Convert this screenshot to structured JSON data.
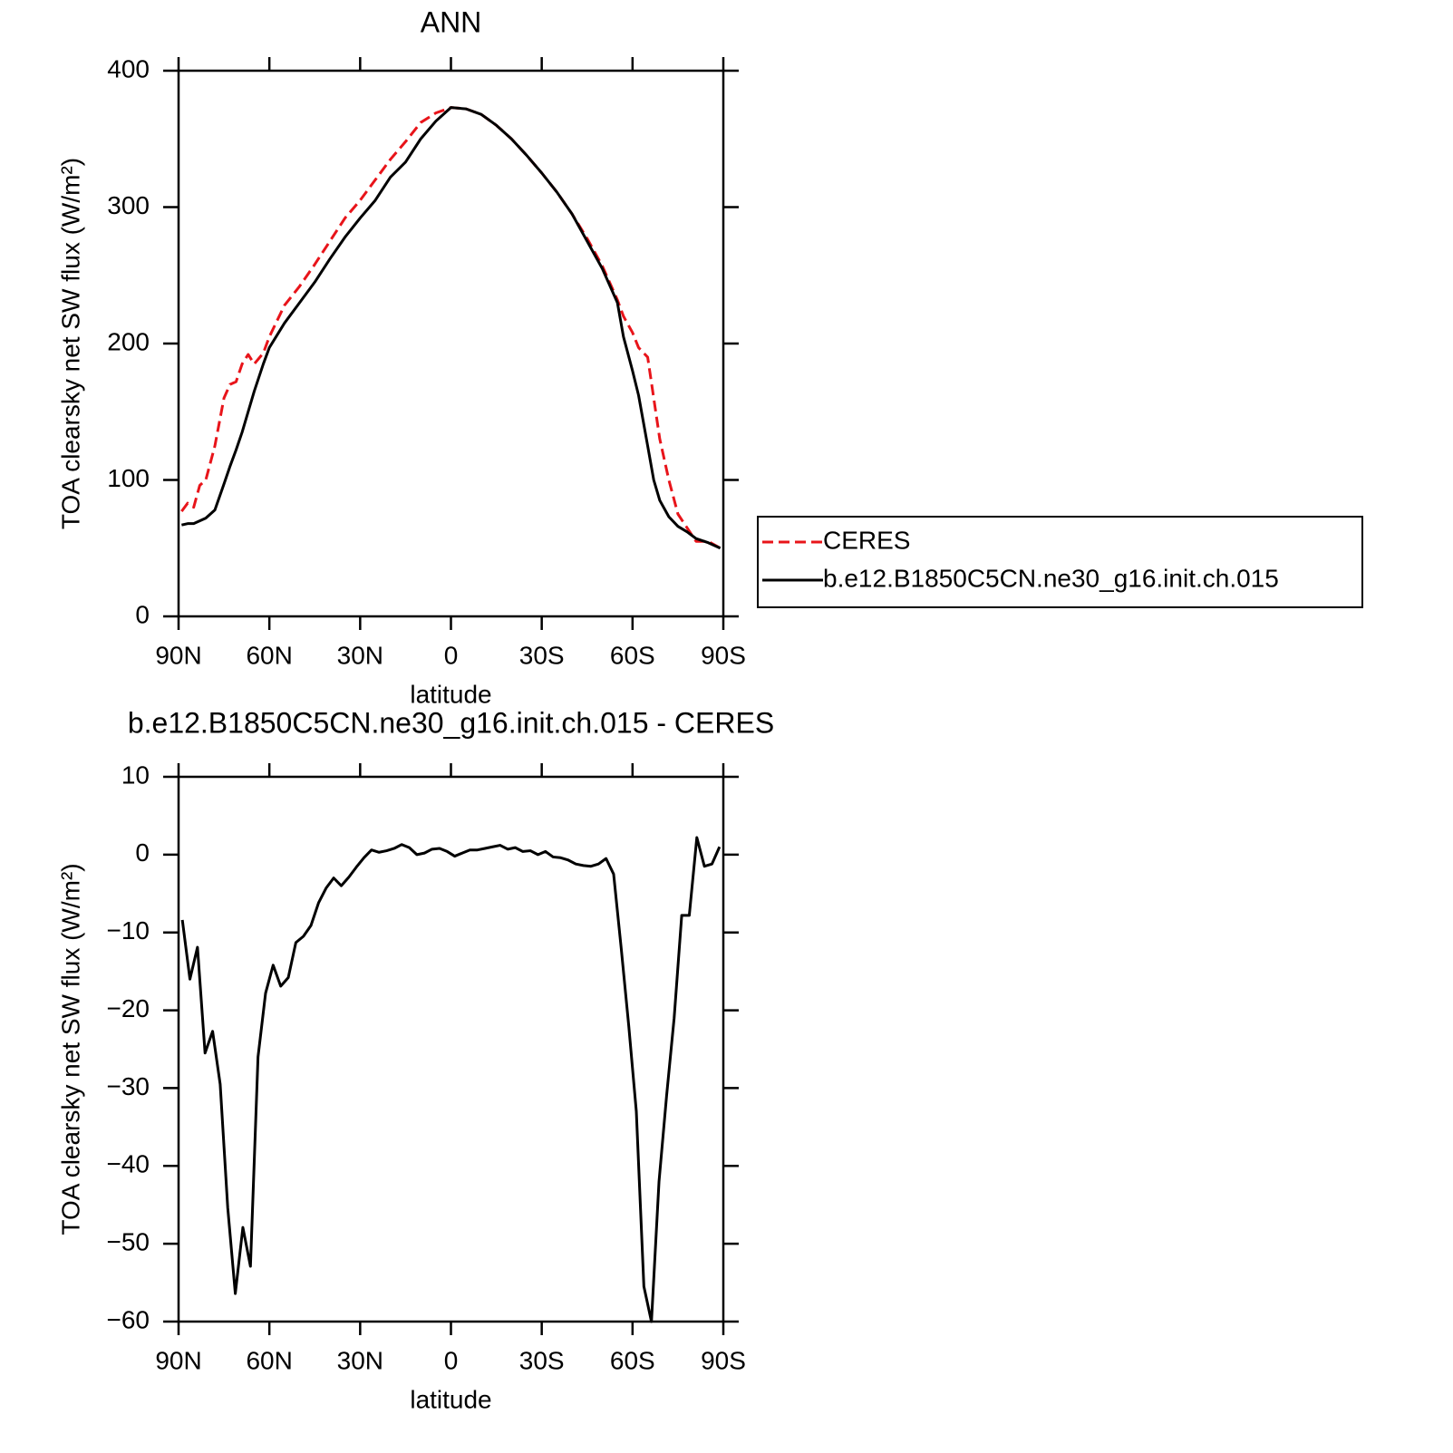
{
  "chart_data": [
    {
      "type": "line",
      "title": "ANN",
      "xlabel": "latitude",
      "ylabel": "TOA clearsky net SW flux (W/m²)",
      "x": [
        89,
        87,
        85,
        83,
        81,
        78,
        75,
        73,
        71,
        69,
        67,
        65,
        62,
        60,
        55,
        50,
        45,
        40,
        35,
        30,
        25,
        20,
        15,
        10,
        5,
        0,
        -5,
        -10,
        -15,
        -20,
        -25,
        -30,
        -35,
        -40,
        -45,
        -50,
        -55,
        -57,
        -60,
        -62,
        -65,
        -67,
        -69,
        -72,
        -75,
        -78,
        -81,
        -85,
        -89
      ],
      "series": [
        {
          "name": "CERES",
          "color": "#e8141a",
          "dashed": true,
          "values": [
            77,
            83,
            80,
            96,
            100,
            125,
            160,
            170,
            172,
            185,
            192,
            185,
            193,
            205,
            228,
            242,
            258,
            275,
            292,
            305,
            320,
            335,
            348,
            362,
            369,
            373,
            372,
            368,
            360,
            350,
            338,
            325,
            311,
            295,
            277,
            257,
            232,
            220,
            208,
            197,
            190,
            160,
            130,
            100,
            75,
            65,
            55,
            55,
            50
          ]
        },
        {
          "name": "b.e12.B1850C5CN.ne30_g16.init.ch.015",
          "color": "#000000",
          "dashed": false,
          "values": [
            67,
            68,
            68,
            70,
            72,
            78,
            97,
            110,
            122,
            135,
            150,
            165,
            185,
            197,
            215,
            230,
            245,
            262,
            278,
            292,
            305,
            322,
            333,
            350,
            363,
            373,
            372,
            368,
            360,
            350,
            338,
            325,
            311,
            295,
            275,
            255,
            230,
            205,
            180,
            162,
            125,
            100,
            85,
            73,
            66,
            62,
            57,
            54,
            50
          ]
        }
      ],
      "xlim": [
        90,
        -90
      ],
      "xticks": [
        {
          "value": 90,
          "label": "90N"
        },
        {
          "value": 60,
          "label": "60N"
        },
        {
          "value": 30,
          "label": "30N"
        },
        0,
        {
          "value": -30,
          "label": "30S"
        },
        {
          "value": -60,
          "label": "60S"
        },
        {
          "value": -90,
          "label": "90S"
        }
      ],
      "ylim": [
        0,
        400
      ],
      "yticks": [
        0,
        100,
        200,
        300,
        400
      ],
      "legend": "right"
    },
    {
      "type": "line",
      "title": "b.e12.B1850C5CN.ne30_g16.init.ch.015 - CERES",
      "xlabel": "latitude",
      "ylabel": "TOA clearsky net SW flux (W/m²)",
      "x": [
        88.75,
        86.25,
        83.75,
        81.25,
        78.75,
        76.25,
        73.75,
        71.25,
        68.75,
        66.25,
        63.75,
        61.25,
        58.75,
        56.25,
        53.75,
        51.25,
        48.75,
        46.25,
        43.75,
        41.25,
        38.75,
        36.25,
        33.75,
        31.25,
        28.75,
        26.25,
        23.75,
        21.25,
        18.75,
        16.25,
        13.75,
        11.25,
        8.75,
        6.25,
        3.75,
        1.25,
        -1.25,
        -3.75,
        -6.25,
        -8.75,
        -11.25,
        -13.75,
        -16.25,
        -18.75,
        -21.25,
        -23.75,
        -26.25,
        -28.75,
        -31.25,
        -33.75,
        -36.25,
        -38.75,
        -41.25,
        -43.75,
        -46.25,
        -48.75,
        -51.25,
        -53.75,
        -56.25,
        -58.75,
        -61.25,
        -63.75,
        -66.25,
        -68.75,
        -71.25,
        -73.75,
        -76.25,
        -78.75,
        -81.25,
        -83.75,
        -86.25,
        -88.75
      ],
      "series": [
        {
          "name": null,
          "color": "#000000",
          "dashed": false,
          "values": [
            -8.4,
            -16,
            -11.9,
            -25.5,
            -22.7,
            -29.5,
            -45.4,
            -56.4,
            -47.9,
            -52.9,
            -26,
            -17.8,
            -14.2,
            -16.9,
            -15.8,
            -11.3,
            -10.5,
            -9.1,
            -6.2,
            -4.3,
            -3.0,
            -4.0,
            -2.9,
            -1.6,
            -0.4,
            0.6,
            0.3,
            0.5,
            0.8,
            1.3,
            0.9,
            0.0,
            0.2,
            0.7,
            0.8,
            0.4,
            -0.2,
            0.2,
            0.6,
            0.6,
            0.8,
            1.0,
            1.2,
            0.7,
            0.9,
            0.4,
            0.5,
            0.0,
            0.4,
            -0.3,
            -0.4,
            -0.7,
            -1.2,
            -1.4,
            -1.5,
            -1.2,
            -0.5,
            -2.5,
            -12,
            -22,
            -33,
            -55.5,
            -60,
            -42,
            -31,
            -21,
            -7.8,
            -7.8,
            2.2,
            -1.5,
            -1.2,
            1.0
          ]
        }
      ],
      "xlim": [
        90,
        -90
      ],
      "xticks": [
        {
          "value": 90,
          "label": "90N"
        },
        {
          "value": 60,
          "label": "60N"
        },
        {
          "value": 30,
          "label": "30N"
        },
        0,
        {
          "value": -30,
          "label": "30S"
        },
        {
          "value": -60,
          "label": "60S"
        },
        {
          "value": -90,
          "label": "90S"
        }
      ],
      "ylim": [
        -60,
        10
      ],
      "yticks": [
        {
          "value": -60,
          "label": "−60"
        },
        {
          "value": -50,
          "label": "−50"
        },
        {
          "value": -40,
          "label": "−40"
        },
        {
          "value": -30,
          "label": "−30"
        },
        {
          "value": -20,
          "label": "−20"
        },
        {
          "value": -10,
          "label": "−10"
        },
        0,
        10
      ]
    }
  ]
}
